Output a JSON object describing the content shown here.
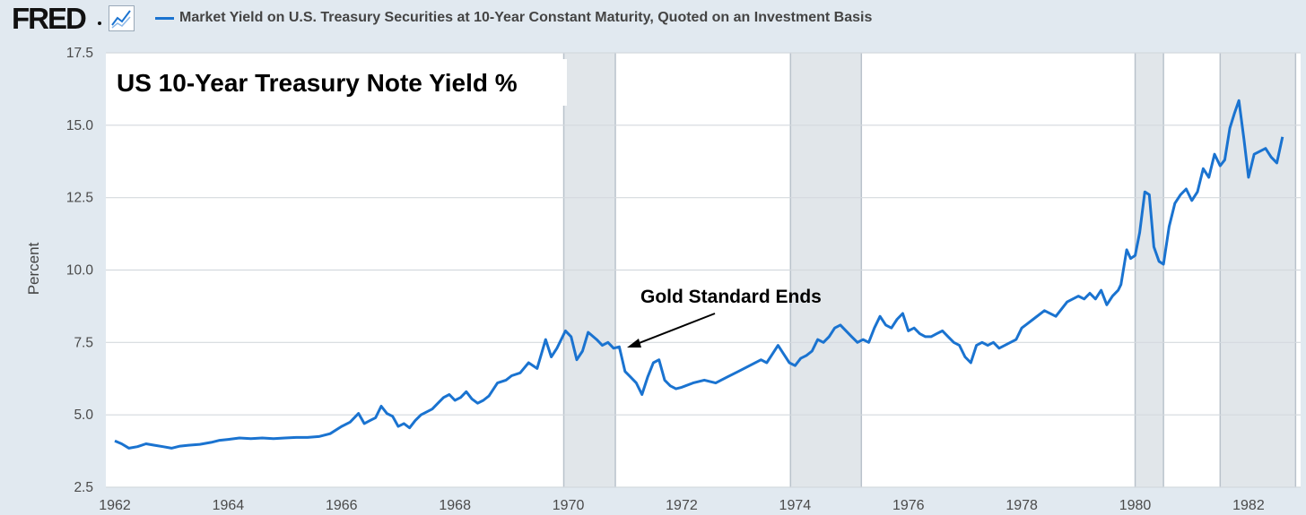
{
  "header": {
    "logo_text": "FRED",
    "logo_icon": "graph-icon",
    "series_title": "Market Yield on U.S. Treasury Securities at 10-Year Constant Maturity, Quoted on an Investment Basis",
    "series_color": "#1a73d0"
  },
  "chart_data": {
    "type": "line",
    "title": "US 10-Year Treasury Note Yield %",
    "ylabel": "Percent",
    "xlabel": "",
    "ylim": [
      2.5,
      17.5
    ],
    "xlim": [
      1962.0,
      1982.65
    ],
    "yticks": [
      "2.5",
      "5.0",
      "7.5",
      "10.0",
      "12.5",
      "15.0",
      "17.5"
    ],
    "xticks": [
      "1962",
      "1964",
      "1966",
      "1968",
      "1970",
      "1972",
      "1974",
      "1976",
      "1978",
      "1980",
      "1982"
    ],
    "grid": true,
    "recessions": [
      [
        1969.92,
        1970.83
      ],
      [
        1973.92,
        1975.17
      ],
      [
        1980.0,
        1980.5
      ],
      [
        1981.5,
        1982.83
      ]
    ],
    "annotations": [
      {
        "text": "Gold Standard Ends",
        "point": [
          1970.95,
          7.2
        ]
      }
    ],
    "series": [
      {
        "name": "Market Yield on U.S. Treasury Securities at 10-Year Constant Maturity, Quoted on an Investment Basis",
        "color": "#1a73d0",
        "x": [
          1962.0,
          1962.12,
          1962.25,
          1962.4,
          1962.55,
          1962.7,
          1962.85,
          1963.0,
          1963.15,
          1963.3,
          1963.5,
          1963.7,
          1963.85,
          1964.0,
          1964.2,
          1964.4,
          1964.6,
          1964.8,
          1965.0,
          1965.2,
          1965.4,
          1965.6,
          1965.8,
          1966.0,
          1966.15,
          1966.3,
          1966.4,
          1966.5,
          1966.6,
          1966.7,
          1966.8,
          1966.9,
          1967.0,
          1967.1,
          1967.2,
          1967.3,
          1967.4,
          1967.5,
          1967.6,
          1967.7,
          1967.8,
          1967.9,
          1968.0,
          1968.1,
          1968.2,
          1968.3,
          1968.4,
          1968.5,
          1968.6,
          1968.75,
          1968.9,
          1969.0,
          1969.15,
          1969.3,
          1969.45,
          1969.6,
          1969.7,
          1969.8,
          1969.95,
          1970.05,
          1970.15,
          1970.25,
          1970.35,
          1970.5,
          1970.6,
          1970.7,
          1970.8,
          1970.9,
          1971.0,
          1971.1,
          1971.2,
          1971.3,
          1971.4,
          1971.5,
          1971.6,
          1971.7,
          1971.8,
          1971.9,
          1972.0,
          1972.2,
          1972.4,
          1972.6,
          1972.8,
          1973.0,
          1973.2,
          1973.4,
          1973.5,
          1973.6,
          1973.7,
          1973.8,
          1973.9,
          1974.0,
          1974.1,
          1974.2,
          1974.3,
          1974.4,
          1974.5,
          1974.6,
          1974.7,
          1974.8,
          1974.9,
          1975.0,
          1975.1,
          1975.2,
          1975.3,
          1975.4,
          1975.5,
          1975.6,
          1975.7,
          1975.8,
          1975.9,
          1976.0,
          1976.1,
          1976.2,
          1976.3,
          1976.4,
          1976.5,
          1976.6,
          1976.7,
          1976.8,
          1976.9,
          1977.0,
          1977.1,
          1977.2,
          1977.3,
          1977.4,
          1977.5,
          1977.6,
          1977.7,
          1977.8,
          1977.9,
          1978.0,
          1978.2,
          1978.4,
          1978.6,
          1978.8,
          1979.0,
          1979.1,
          1979.2,
          1979.3,
          1979.4,
          1979.5,
          1979.6,
          1979.7,
          1979.75,
          1979.85,
          1979.92,
          1980.0,
          1980.08,
          1980.17,
          1980.25,
          1980.33,
          1980.42,
          1980.5,
          1980.6,
          1980.7,
          1980.8,
          1980.9,
          1981.0,
          1981.1,
          1981.2,
          1981.3,
          1981.4,
          1981.5,
          1981.58,
          1981.67,
          1981.75,
          1981.83,
          1981.92,
          1982.0,
          1982.1,
          1982.2,
          1982.3,
          1982.4,
          1982.5,
          1982.6
        ],
        "y": [
          4.1,
          4.0,
          3.85,
          3.9,
          4.0,
          3.95,
          3.9,
          3.85,
          3.92,
          3.95,
          3.98,
          4.05,
          4.12,
          4.15,
          4.2,
          4.18,
          4.2,
          4.18,
          4.2,
          4.22,
          4.22,
          4.25,
          4.35,
          4.6,
          4.75,
          5.05,
          4.7,
          4.8,
          4.9,
          5.3,
          5.05,
          4.95,
          4.6,
          4.7,
          4.55,
          4.8,
          5.0,
          5.1,
          5.2,
          5.4,
          5.6,
          5.7,
          5.5,
          5.6,
          5.8,
          5.55,
          5.4,
          5.5,
          5.65,
          6.1,
          6.2,
          6.35,
          6.45,
          6.8,
          6.6,
          7.6,
          7.0,
          7.3,
          7.9,
          7.7,
          6.9,
          7.2,
          7.85,
          7.6,
          7.4,
          7.5,
          7.3,
          7.35,
          6.5,
          6.3,
          6.1,
          5.7,
          6.3,
          6.8,
          6.9,
          6.2,
          6.0,
          5.9,
          5.95,
          6.1,
          6.2,
          6.1,
          6.3,
          6.5,
          6.7,
          6.9,
          6.8,
          7.1,
          7.4,
          7.1,
          6.8,
          6.7,
          6.95,
          7.05,
          7.2,
          7.6,
          7.5,
          7.7,
          8.0,
          8.1,
          7.9,
          7.7,
          7.5,
          7.6,
          7.5,
          8.0,
          8.4,
          8.1,
          8.0,
          8.3,
          8.5,
          7.9,
          8.0,
          7.8,
          7.7,
          7.7,
          7.8,
          7.9,
          7.7,
          7.5,
          7.4,
          7.0,
          6.8,
          7.4,
          7.5,
          7.4,
          7.5,
          7.3,
          7.4,
          7.5,
          7.6,
          8.0,
          8.3,
          8.6,
          8.4,
          8.9,
          9.1,
          9.0,
          9.2,
          9.0,
          9.3,
          8.8,
          9.1,
          9.3,
          9.5,
          10.7,
          10.4,
          10.5,
          11.3,
          12.7,
          12.6,
          10.8,
          10.3,
          10.2,
          11.5,
          12.3,
          12.6,
          12.8,
          12.4,
          12.7,
          13.5,
          13.2,
          14.0,
          13.6,
          13.8,
          14.9,
          15.4,
          15.85,
          14.5,
          13.2,
          14.0,
          14.1,
          14.2,
          13.9,
          13.7,
          14.6
        ]
      }
    ]
  }
}
